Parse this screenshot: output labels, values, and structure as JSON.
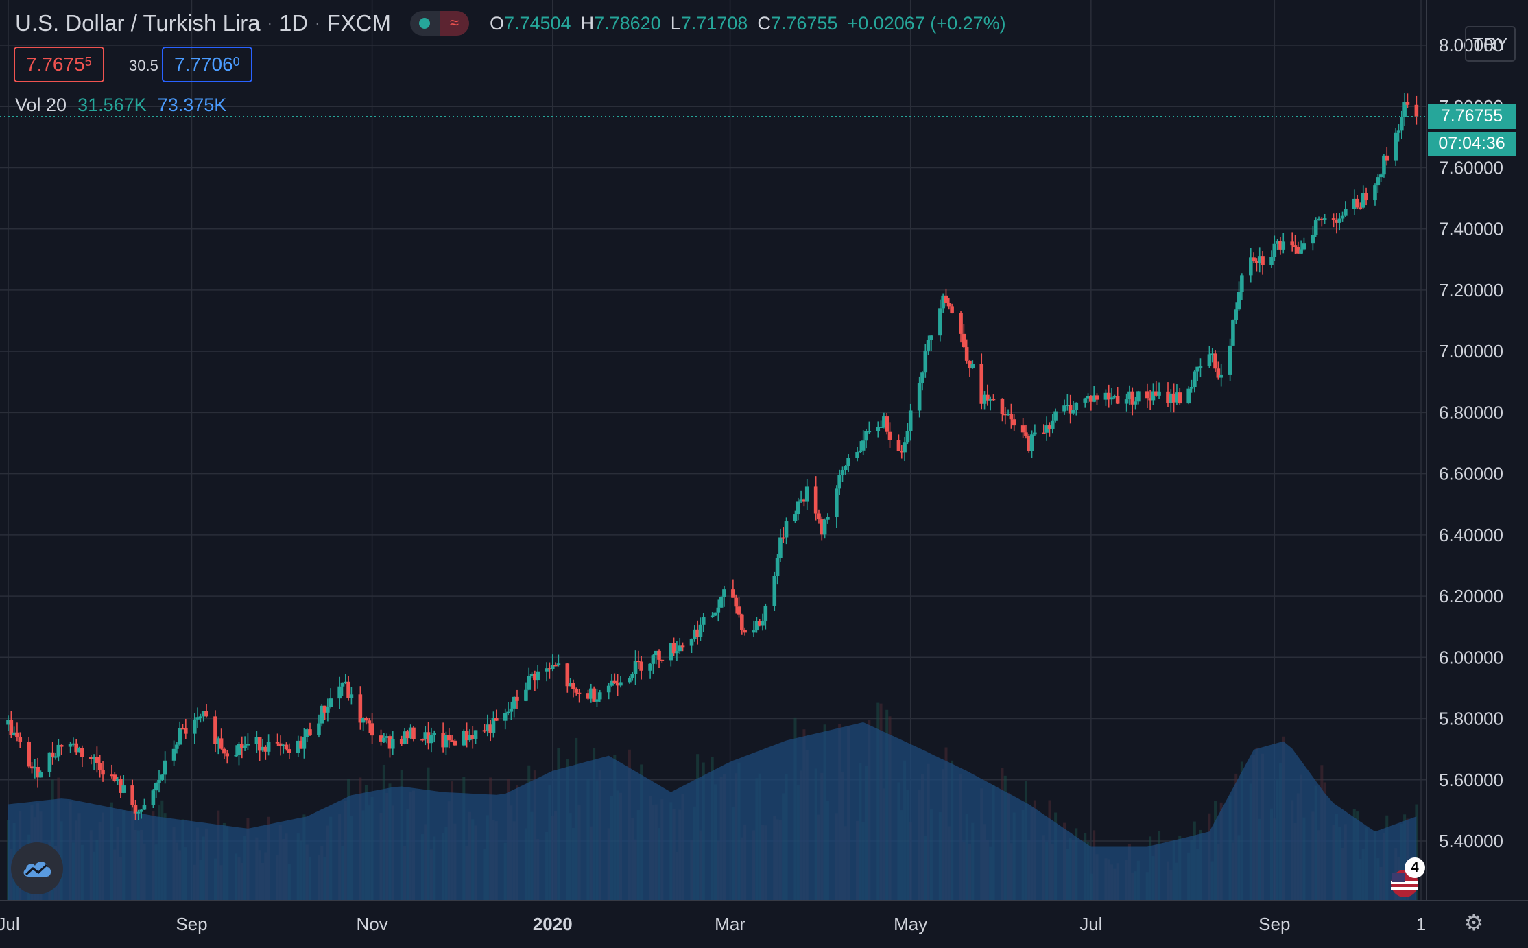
{
  "header": {
    "symbol_title": "U.S. Dollar / Turkish Lira",
    "interval": "1D",
    "exchange": "FXCM",
    "open_label": "O",
    "open_value": "7.74504",
    "high_label": "H",
    "high_value": "7.78620",
    "low_label": "L",
    "low_value": "7.71708",
    "close_label": "C",
    "close_value": "7.76755",
    "change": "+0.02067 (+0.27%)"
  },
  "trade": {
    "bid_main": "7.7675",
    "bid_pip": "5",
    "spread": "30.5",
    "ask_main": "7.7706",
    "ask_pip": "0"
  },
  "volume_legend": {
    "label": "Vol 20",
    "volume": "31.567K",
    "ma": "73.375K"
  },
  "currency_button": "TRY",
  "last_price_tag": "7.76755",
  "countdown_tag": "07:04:36",
  "events_badge": "4",
  "colors": {
    "background": "#131722",
    "grid": "#2a2e39",
    "up": "#26a69a",
    "down": "#ef5350",
    "volume_area": "#1e4a7a",
    "text": "#d1d4dc"
  },
  "chart_data": {
    "type": "candlestick",
    "title": "U.S. Dollar / Turkish Lira 1D FXCM",
    "y_axis": {
      "side": "right",
      "ylim": [
        5.2,
        8.05
      ],
      "ticks": [
        "8.00000",
        "7.80000",
        "7.60000",
        "7.40000",
        "7.20000",
        "7.00000",
        "6.80000",
        "6.60000",
        "6.40000",
        "6.20000",
        "6.00000",
        "5.80000",
        "5.60000",
        "5.40000"
      ]
    },
    "x_axis": {
      "tick_labels": [
        "Jul",
        "Sep",
        "Nov",
        "2020",
        "Mar",
        "May",
        "Jul",
        "Sep",
        "1"
      ]
    },
    "price_anchors": [
      [
        "2019-07-01",
        5.78
      ],
      [
        "2019-07-10",
        5.62
      ],
      [
        "2019-07-20",
        5.73
      ],
      [
        "2019-08-01",
        5.65
      ],
      [
        "2019-08-10",
        5.55
      ],
      [
        "2019-08-15",
        5.48
      ],
      [
        "2019-08-22",
        5.62
      ],
      [
        "2019-08-28",
        5.75
      ],
      [
        "2019-09-05",
        5.8
      ],
      [
        "2019-09-12",
        5.7
      ],
      [
        "2019-09-25",
        5.72
      ],
      [
        "2019-10-05",
        5.68
      ],
      [
        "2019-10-15",
        5.82
      ],
      [
        "2019-10-22",
        5.92
      ],
      [
        "2019-10-28",
        5.8
      ],
      [
        "2019-11-05",
        5.72
      ],
      [
        "2019-11-15",
        5.75
      ],
      [
        "2019-11-25",
        5.72
      ],
      [
        "2019-12-05",
        5.75
      ],
      [
        "2019-12-15",
        5.79
      ],
      [
        "2019-12-25",
        5.94
      ],
      [
        "2020-01-03",
        5.97
      ],
      [
        "2020-01-08",
        5.88
      ],
      [
        "2020-01-15",
        5.88
      ],
      [
        "2020-01-31",
        5.98
      ],
      [
        "2020-02-15",
        6.05
      ],
      [
        "2020-02-25",
        6.15
      ],
      [
        "2020-03-01",
        6.23
      ],
      [
        "2020-03-06",
        6.08
      ],
      [
        "2020-03-12",
        6.12
      ],
      [
        "2020-03-20",
        6.45
      ],
      [
        "2020-03-28",
        6.55
      ],
      [
        "2020-04-01",
        6.42
      ],
      [
        "2020-04-10",
        6.65
      ],
      [
        "2020-04-22",
        6.78
      ],
      [
        "2020-04-27",
        6.65
      ],
      [
        "2020-05-05",
        6.95
      ],
      [
        "2020-05-12",
        7.2
      ],
      [
        "2020-05-18",
        7.05
      ],
      [
        "2020-05-25",
        6.85
      ],
      [
        "2020-06-01",
        6.8
      ],
      [
        "2020-06-10",
        6.7
      ],
      [
        "2020-06-20",
        6.8
      ],
      [
        "2020-07-01",
        6.85
      ],
      [
        "2020-07-20",
        6.85
      ],
      [
        "2020-08-01",
        6.85
      ],
      [
        "2020-08-10",
        6.99
      ],
      [
        "2020-08-15",
        6.9
      ],
      [
        "2020-08-22",
        7.33
      ],
      [
        "2020-08-28",
        7.3
      ],
      [
        "2020-09-02",
        7.35
      ],
      [
        "2020-09-08",
        7.32
      ],
      [
        "2020-09-15",
        7.42
      ],
      [
        "2020-09-25",
        7.45
      ],
      [
        "2020-10-01",
        7.5
      ],
      [
        "2020-10-10",
        7.65
      ],
      [
        "2020-10-15",
        7.8
      ],
      [
        "2020-10-19",
        7.76755
      ]
    ],
    "volume": {
      "series_name": "Vol 20",
      "last": 31567,
      "ma": 73375,
      "unit": "contracts"
    },
    "volume_ma_anchors": [
      [
        "2019-07-01",
        0.34
      ],
      [
        "2019-07-20",
        0.36
      ],
      [
        "2019-08-20",
        0.3
      ],
      [
        "2019-09-20",
        0.26
      ],
      [
        "2019-10-10",
        0.3
      ],
      [
        "2019-10-25",
        0.37
      ],
      [
        "2019-11-10",
        0.4
      ],
      [
        "2019-11-25",
        0.38
      ],
      [
        "2019-12-15",
        0.37
      ],
      [
        "2020-01-01",
        0.45
      ],
      [
        "2020-01-20",
        0.5
      ],
      [
        "2020-02-10",
        0.38
      ],
      [
        "2020-03-01",
        0.48
      ],
      [
        "2020-03-20",
        0.55
      ],
      [
        "2020-04-15",
        0.61
      ],
      [
        "2020-05-05",
        0.52
      ],
      [
        "2020-05-20",
        0.45
      ],
      [
        "2020-06-10",
        0.34
      ],
      [
        "2020-07-01",
        0.2
      ],
      [
        "2020-07-20",
        0.2
      ],
      [
        "2020-08-10",
        0.25
      ],
      [
        "2020-08-25",
        0.52
      ],
      [
        "2020-09-05",
        0.55
      ],
      [
        "2020-09-20",
        0.35
      ],
      [
        "2020-10-05",
        0.25
      ],
      [
        "2020-10-19",
        0.3
      ]
    ],
    "last_price": 7.76755
  }
}
